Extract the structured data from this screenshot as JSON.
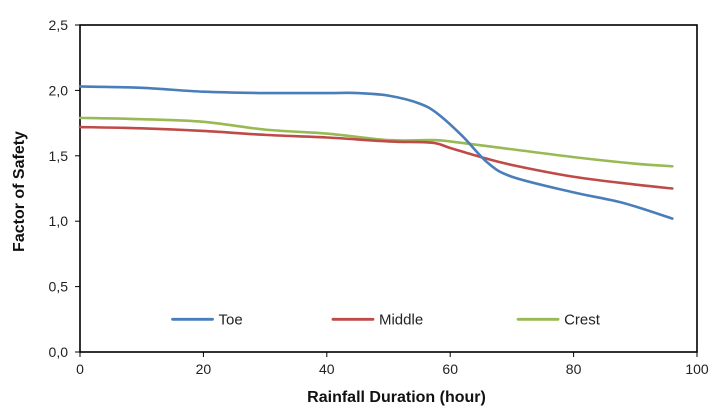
{
  "chart_data": {
    "type": "line",
    "title": "",
    "xlabel": "Rainfall Duration (hour)",
    "ylabel": "Factor of Safety",
    "xlim": [
      0,
      100
    ],
    "ylim": [
      0,
      2.5
    ],
    "x_ticks": [
      "0",
      "20",
      "40",
      "60",
      "80",
      "100"
    ],
    "y_ticks": [
      "0,0",
      "0,5",
      "1,0",
      "1,5",
      "2,0",
      "2,5"
    ],
    "grid": false,
    "legend_position": "inside-bottom",
    "series": [
      {
        "name": "Toe",
        "color": "#4a7ebb",
        "x": [
          0,
          10,
          20,
          30,
          40,
          45,
          50,
          55,
          58,
          62,
          66,
          70,
          80,
          88,
          96
        ],
        "y": [
          2.03,
          2.02,
          1.99,
          1.98,
          1.98,
          1.98,
          1.96,
          1.9,
          1.82,
          1.65,
          1.45,
          1.34,
          1.22,
          1.14,
          1.02
        ]
      },
      {
        "name": "Middle",
        "color": "#be4b48",
        "x": [
          0,
          10,
          20,
          30,
          40,
          50,
          57,
          60,
          65,
          70,
          80,
          90,
          96
        ],
        "y": [
          1.72,
          1.71,
          1.69,
          1.66,
          1.64,
          1.61,
          1.6,
          1.56,
          1.49,
          1.43,
          1.34,
          1.28,
          1.25
        ]
      },
      {
        "name": "Crest",
        "color": "#98b954",
        "x": [
          0,
          10,
          20,
          30,
          40,
          50,
          57,
          60,
          70,
          80,
          90,
          96
        ],
        "y": [
          1.79,
          1.78,
          1.76,
          1.7,
          1.67,
          1.62,
          1.62,
          1.61,
          1.55,
          1.49,
          1.44,
          1.42
        ]
      }
    ]
  }
}
